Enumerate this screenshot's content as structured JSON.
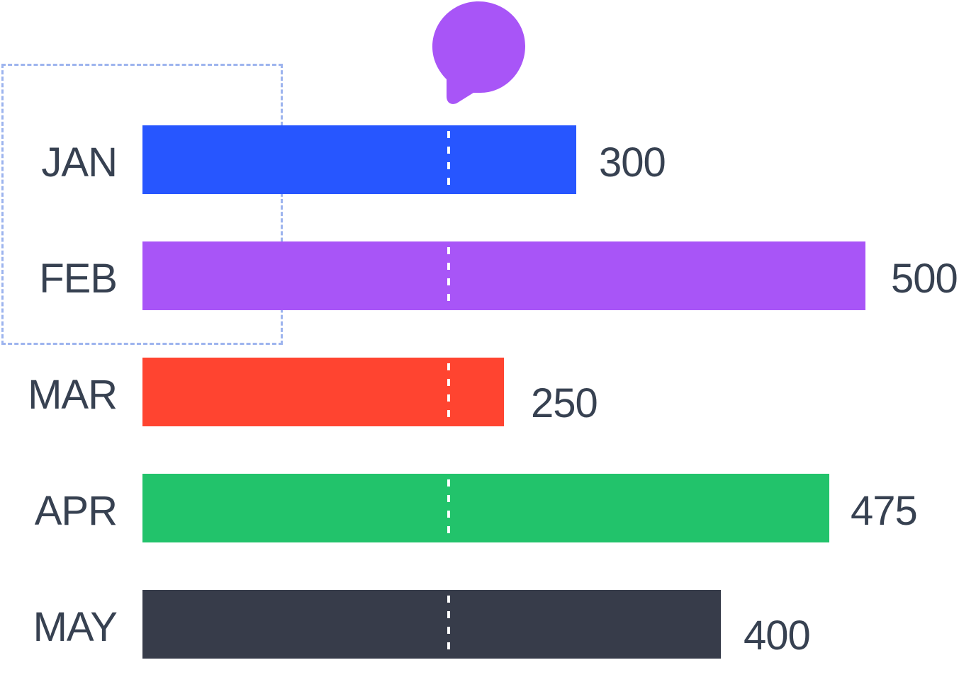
{
  "chart_data": {
    "type": "bar",
    "orientation": "horizontal",
    "categories": [
      "JAN",
      "FEB",
      "MAR",
      "APR",
      "MAY"
    ],
    "values": [
      300,
      500,
      250,
      475,
      400
    ],
    "value_labels": [
      "300",
      "500",
      "250",
      "475",
      "400"
    ],
    "colors": [
      "#2756FF",
      "#A855F7",
      "#FF4430",
      "#22C36B",
      "#373C4A"
    ],
    "reference_line_value": 212,
    "xlim": [
      0,
      500
    ],
    "grid": false,
    "title": "",
    "xlabel": "",
    "ylabel": ""
  },
  "decorations": {
    "bubble_icon": "speech-bubble-icon",
    "bubble_color": "#A855F7",
    "selection_color": "#9DB4EE"
  }
}
